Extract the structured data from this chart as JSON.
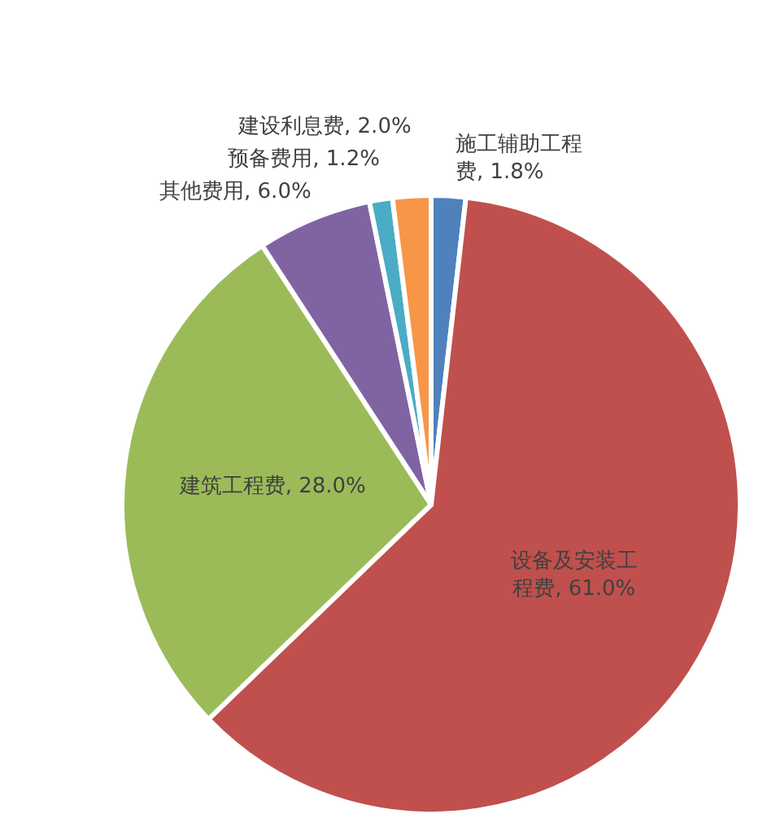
{
  "chart_data": {
    "type": "pie",
    "categories": [
      "施工辅助工程费",
      "设备及安装工程费",
      "建筑工程费",
      "其他费用",
      "预备费用",
      "建设利息费"
    ],
    "values": [
      1.8,
      61.0,
      28.0,
      6.0,
      1.2,
      2.0
    ],
    "colors": [
      "#4f81bd",
      "#c0504d",
      "#9bbb59",
      "#8064a2",
      "#4bacc6",
      "#f79646"
    ],
    "value_labels": [
      "1.8%",
      "61.0%",
      "28.0%",
      "6.0%",
      "1.2%",
      "2.0%"
    ]
  }
}
